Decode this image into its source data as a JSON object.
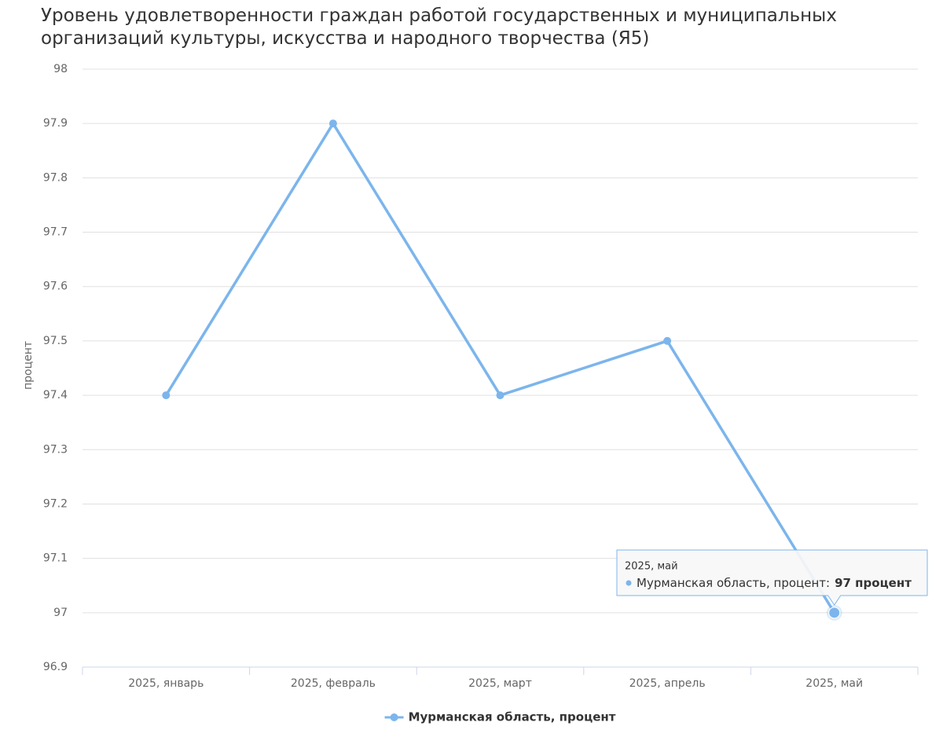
{
  "chart_data": {
    "type": "line",
    "title": "Уровень удовлетворенности граждан работой государственных и муниципальных организаций культуры, искусства и народного творчества (Я5)",
    "y_label": "процент",
    "categories": [
      "2025, январь",
      "2025, февраль",
      "2025, март",
      "2025, апрель",
      "2025, май"
    ],
    "series": [
      {
        "name": "Мурманская область, процент",
        "color": "#7cb5ec",
        "values": [
          97.4,
          97.9,
          97.4,
          97.5,
          97
        ]
      }
    ],
    "ylim": [
      96.9,
      98
    ],
    "yticks": [
      96.9,
      97,
      97.1,
      97.2,
      97.3,
      97.4,
      97.5,
      97.6,
      97.7,
      97.8,
      97.9,
      98
    ],
    "grid": true,
    "legend": "bottom",
    "tooltip": {
      "title": "2025, май",
      "label": "Мурманская область, процент:",
      "value": "97 процент"
    }
  }
}
